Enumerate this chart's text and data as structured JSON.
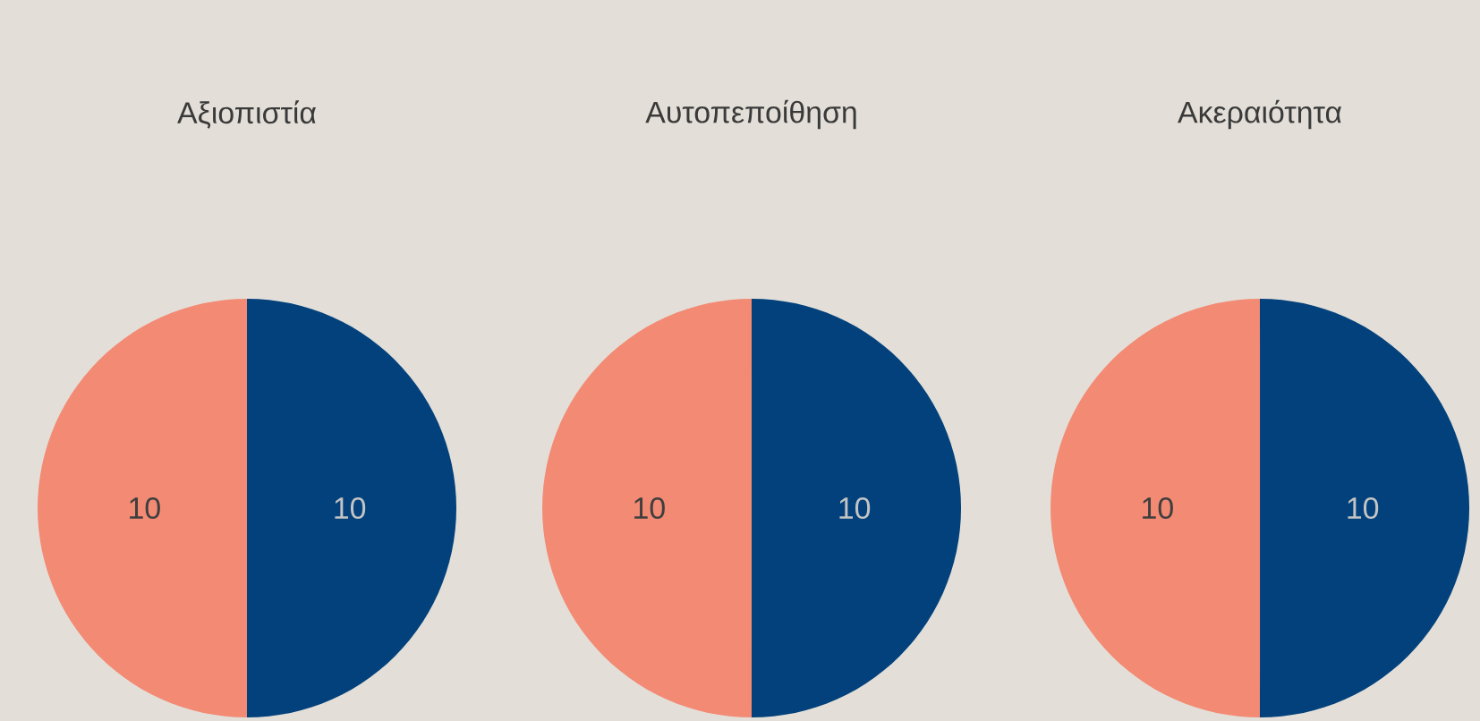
{
  "chart_data": [
    {
      "type": "pie",
      "title": "Αξιοπιστία",
      "categories": [
        null,
        null
      ],
      "values": [
        10,
        10
      ],
      "colors": [
        "#02417b",
        "#f38a74"
      ],
      "data_labels": true
    },
    {
      "type": "pie",
      "title": "Αυτοπεποίθηση",
      "categories": [
        null,
        null
      ],
      "values": [
        10,
        10
      ],
      "colors": [
        "#02417b",
        "#f38a74"
      ],
      "data_labels": true
    },
    {
      "type": "pie",
      "title": "Ακεραιότητα",
      "categories": [
        null,
        null
      ],
      "values": [
        10,
        10
      ],
      "colors": [
        "#02417b",
        "#f38a74"
      ],
      "data_labels": true
    }
  ]
}
